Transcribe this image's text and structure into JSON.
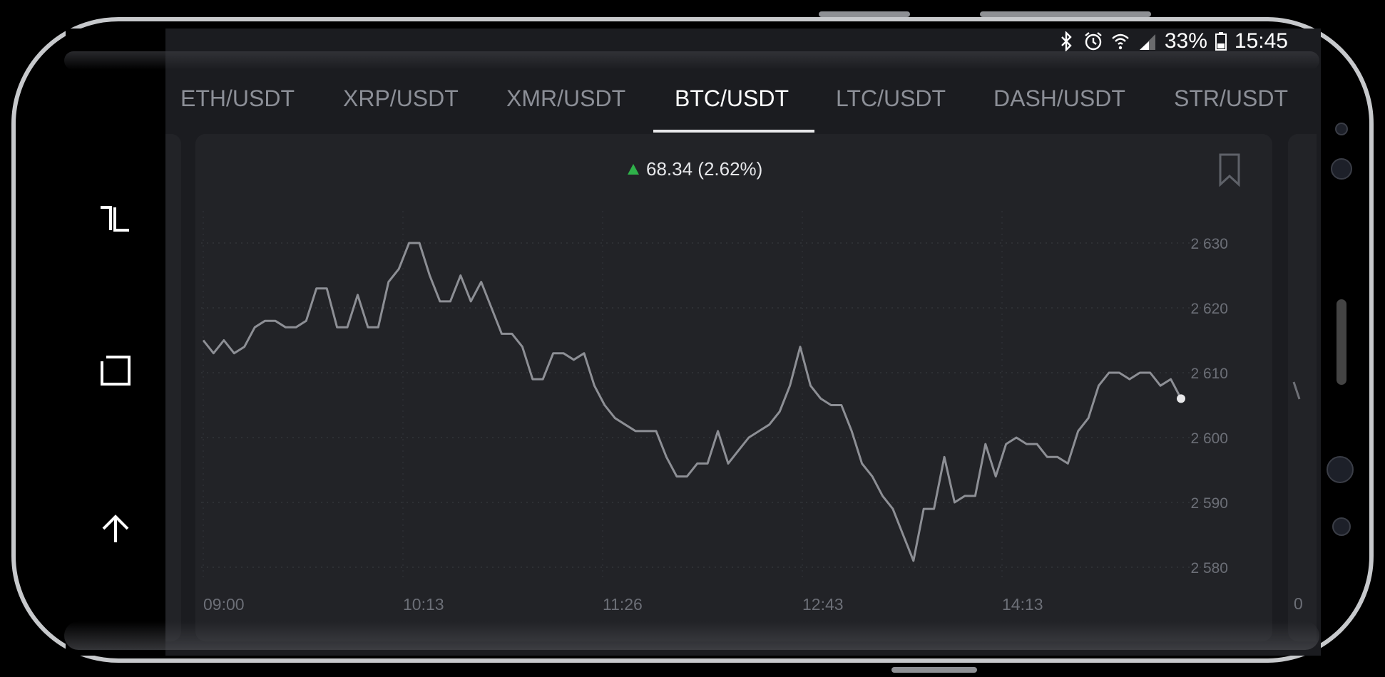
{
  "status_bar": {
    "battery": "33%",
    "time": "15:45"
  },
  "nav": {
    "items": [
      "recent-apps-icon",
      "home-icon",
      "back-icon"
    ]
  },
  "tabs": [
    {
      "label": "ETH/USDT",
      "active": false
    },
    {
      "label": "XRP/USDT",
      "active": false
    },
    {
      "label": "XMR/USDT",
      "active": false
    },
    {
      "label": "BTC/USDT",
      "active": true
    },
    {
      "label": "LTC/USDT",
      "active": false
    },
    {
      "label": "DASH/USDT",
      "active": false
    },
    {
      "label": "STR/USDT",
      "active": false
    }
  ],
  "price_change": "68.34 (2.62%)",
  "colors": {
    "up": "#2fb24a",
    "line": "#8d8f95",
    "background": "#222327"
  },
  "chart_data": {
    "type": "line",
    "title": "",
    "xlabel": "",
    "ylabel": "",
    "x_ticks": [
      "09:00",
      "10:13",
      "11:26",
      "12:43",
      "14:13"
    ],
    "y_ticks": [
      "2 580",
      "2 590",
      "2 600",
      "2 610",
      "2 620",
      "2 630"
    ],
    "ylim": [
      2580,
      2630
    ],
    "grid": true,
    "series": [
      {
        "values": [
          2615,
          2613,
          2615,
          2613,
          2614,
          2617,
          2618,
          2618,
          2617,
          2617,
          2618,
          2623,
          2623,
          2617,
          2617,
          2622,
          2617,
          2617,
          2624,
          2626,
          2630,
          2630,
          2625,
          2621,
          2621,
          2625,
          2621,
          2624,
          2620,
          2616,
          2616,
          2614,
          2609,
          2609,
          2613,
          2613,
          2612,
          2613,
          2608,
          2605,
          2603,
          2602,
          2601,
          2601,
          2601,
          2597,
          2594,
          2594,
          2596,
          2596,
          2601,
          2596,
          2598,
          2600,
          2601,
          2602,
          2604,
          2608,
          2614,
          2608,
          2606,
          2605,
          2605,
          2601,
          2596,
          2594,
          2591,
          2589,
          2585,
          2581,
          2589,
          2589,
          2597,
          2590,
          2591,
          2591,
          2599,
          2594,
          2599,
          2600,
          2599,
          2599,
          2597,
          2597,
          2596,
          2601,
          2603,
          2608,
          2610,
          2610,
          2609,
          2610,
          2610,
          2608,
          2609,
          2606
        ]
      }
    ]
  }
}
